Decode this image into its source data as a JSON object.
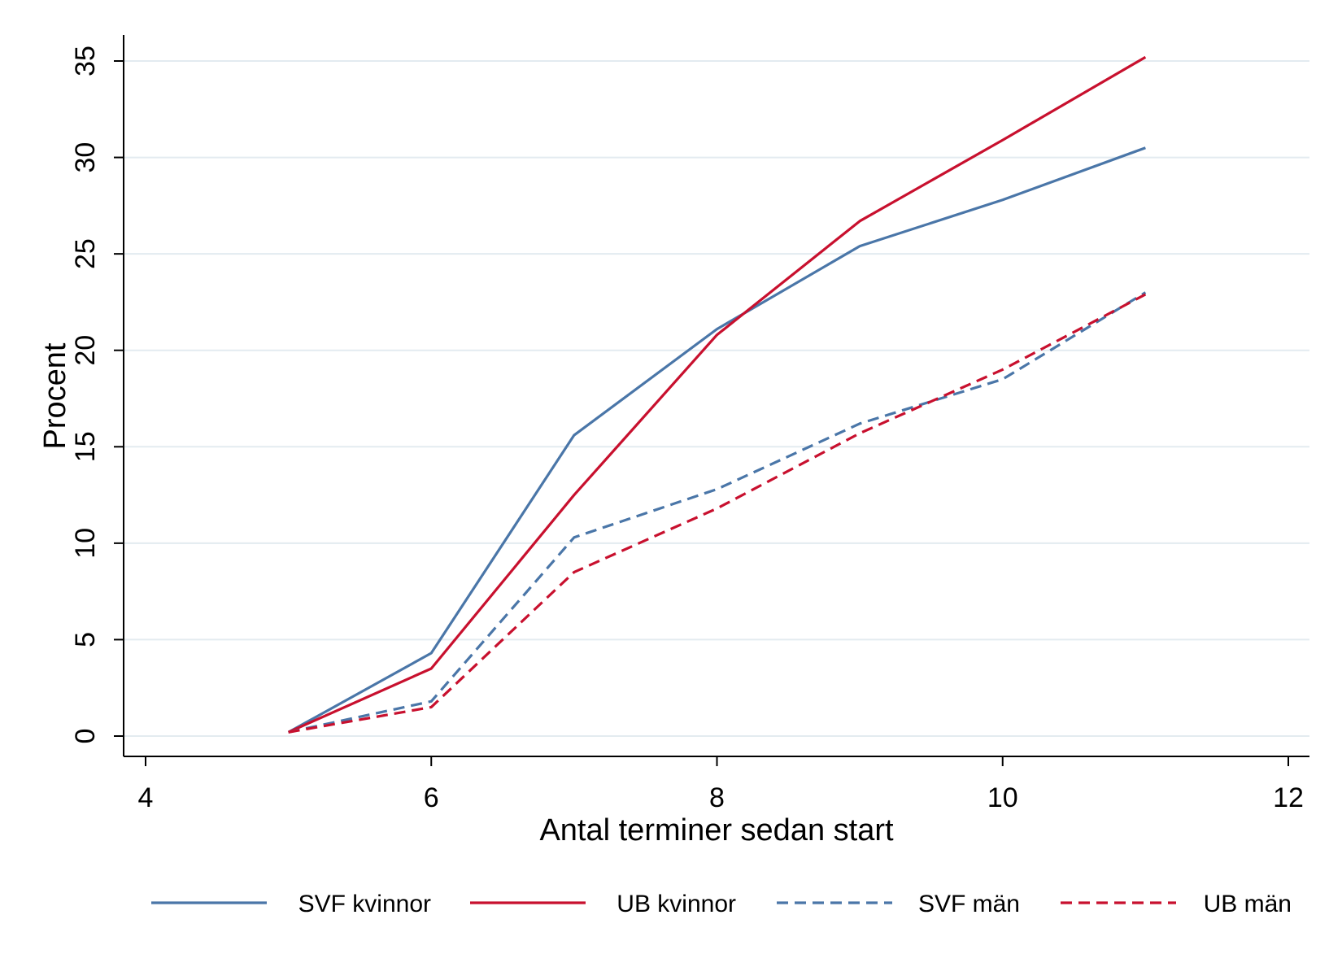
{
  "chart_data": {
    "type": "line",
    "xlabel": "Antal terminer sedan start",
    "ylabel": "Procent",
    "xlim": [
      4,
      12
    ],
    "ylim": [
      0,
      35
    ],
    "xticks": [
      4,
      6,
      8,
      10,
      12
    ],
    "yticks": [
      0,
      5,
      10,
      15,
      20,
      25,
      30,
      35
    ],
    "grid": "horizontal",
    "legend_position": "bottom",
    "series": [
      {
        "name": "SVF kvinnor",
        "color": "#4a76a8",
        "dash": "solid",
        "x": [
          5,
          6,
          7,
          8,
          9,
          10,
          11
        ],
        "y": [
          0.2,
          4.3,
          15.6,
          21.1,
          25.4,
          27.8,
          30.5
        ]
      },
      {
        "name": "UB kvinnor",
        "color": "#c8102e",
        "dash": "solid",
        "x": [
          5,
          6,
          7,
          8,
          9,
          10,
          11
        ],
        "y": [
          0.2,
          3.5,
          12.5,
          20.8,
          26.7,
          30.9,
          35.2
        ]
      },
      {
        "name": "SVF män",
        "color": "#4a76a8",
        "dash": "dashed",
        "x": [
          5,
          6,
          7,
          8,
          9,
          10,
          11
        ],
        "y": [
          0.2,
          1.8,
          10.3,
          12.8,
          16.2,
          18.5,
          23.0
        ]
      },
      {
        "name": "UB män",
        "color": "#c8102e",
        "dash": "dashed",
        "x": [
          5,
          6,
          7,
          8,
          9,
          10,
          11
        ],
        "y": [
          0.2,
          1.5,
          8.5,
          11.8,
          15.7,
          19.0,
          22.9
        ]
      }
    ]
  }
}
